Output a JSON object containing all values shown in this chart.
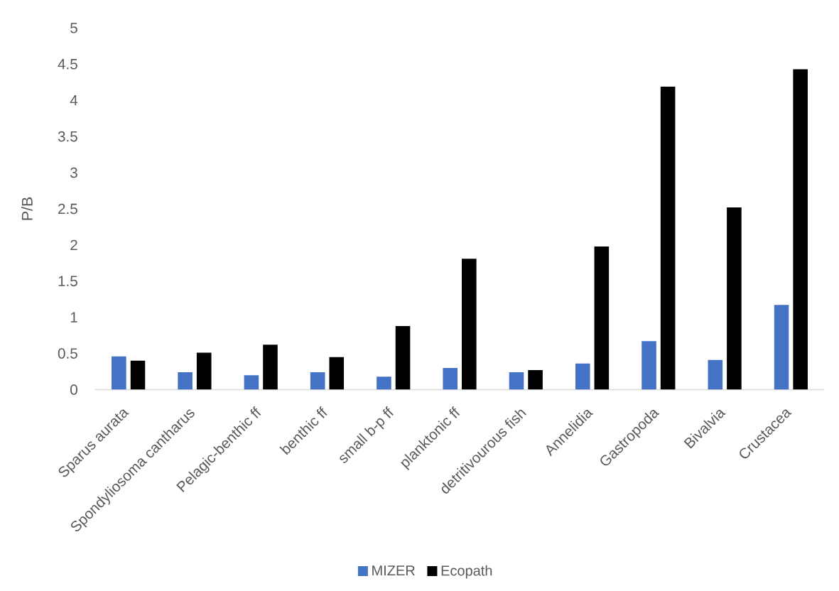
{
  "chart_data": {
    "type": "bar",
    "ylabel": "P/B",
    "categories": [
      "Sparus aurata",
      "Spondyliosoma cantharus",
      "Pelagic-benthic ff",
      "benthic ff",
      "small b-p ff",
      "planktonic ff",
      "detritivourous fish",
      "Annelidia",
      "Gastropoda",
      "Bivalvia",
      "Crustacea"
    ],
    "series": [
      {
        "name": "MIZER",
        "color": "#4472c4",
        "values": [
          0.46,
          0.24,
          0.2,
          0.24,
          0.18,
          0.3,
          0.24,
          0.36,
          0.67,
          0.41,
          1.17
        ]
      },
      {
        "name": "Ecopath",
        "color": "#000000",
        "values": [
          0.4,
          0.51,
          0.62,
          0.45,
          0.88,
          1.81,
          0.27,
          1.98,
          4.19,
          2.52,
          4.43
        ]
      }
    ],
    "ylim": [
      0,
      5
    ],
    "yticks": [
      0,
      0.5,
      1,
      1.5,
      2,
      2.5,
      3,
      3.5,
      4,
      4.5,
      5
    ],
    "legend": "bottom"
  }
}
